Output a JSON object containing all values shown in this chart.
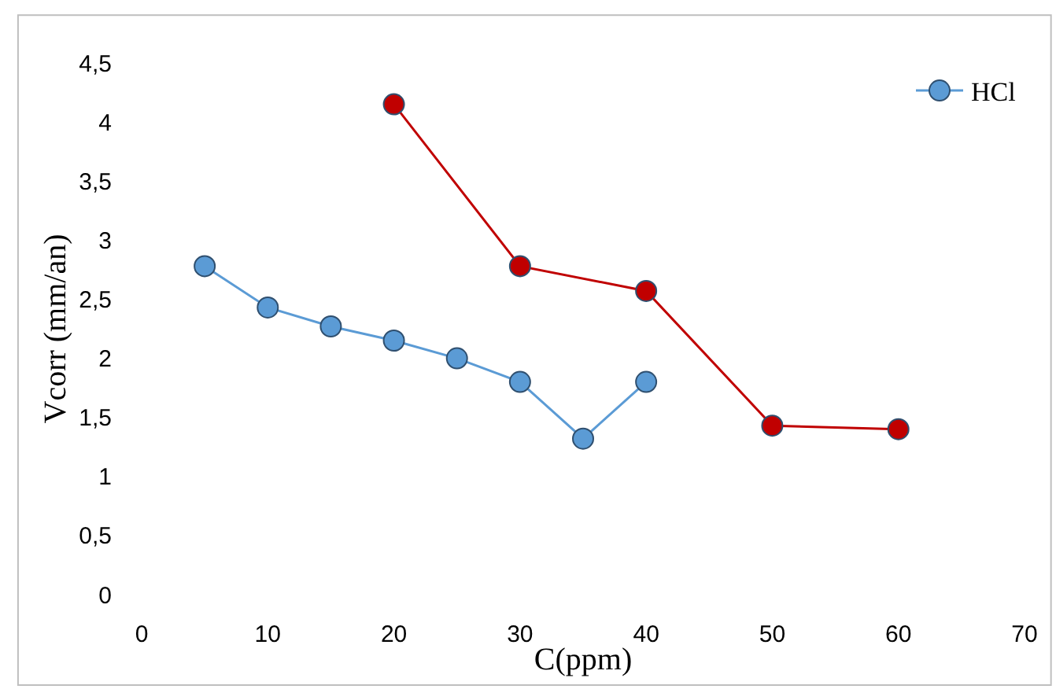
{
  "chart_data": {
    "type": "line",
    "xlabel": "C(ppm)",
    "ylabel": "Vcorr (mm/an)",
    "series": [
      {
        "name": "HCl",
        "color": "#5b9bd5",
        "x": [
          5,
          10,
          15,
          20,
          25,
          30,
          35,
          40
        ],
        "values": [
          2.78,
          2.43,
          2.27,
          2.15,
          2.0,
          1.8,
          1.32,
          1.8
        ]
      },
      {
        "color": "#c00000",
        "x": [
          20,
          30,
          40,
          50,
          60
        ],
        "values": [
          4.15,
          2.78,
          2.57,
          1.43,
          1.4
        ]
      }
    ],
    "xlim": [
      0,
      70
    ],
    "xticks": [
      0,
      10,
      20,
      30,
      40,
      50,
      60,
      70
    ],
    "ylim": [
      0,
      4.5
    ],
    "yticks": [
      0,
      {
        "value": 0.5,
        "label": "0,5"
      },
      1,
      {
        "value": 1.5,
        "label": "1,5"
      },
      2,
      {
        "value": 2.5,
        "label": "2,5"
      },
      3,
      {
        "value": 3.5,
        "label": "3,5"
      },
      4,
      {
        "value": 4.5,
        "label": "4,5"
      }
    ],
    "legend": "top right",
    "marker": "circle",
    "line_style": "solid"
  }
}
